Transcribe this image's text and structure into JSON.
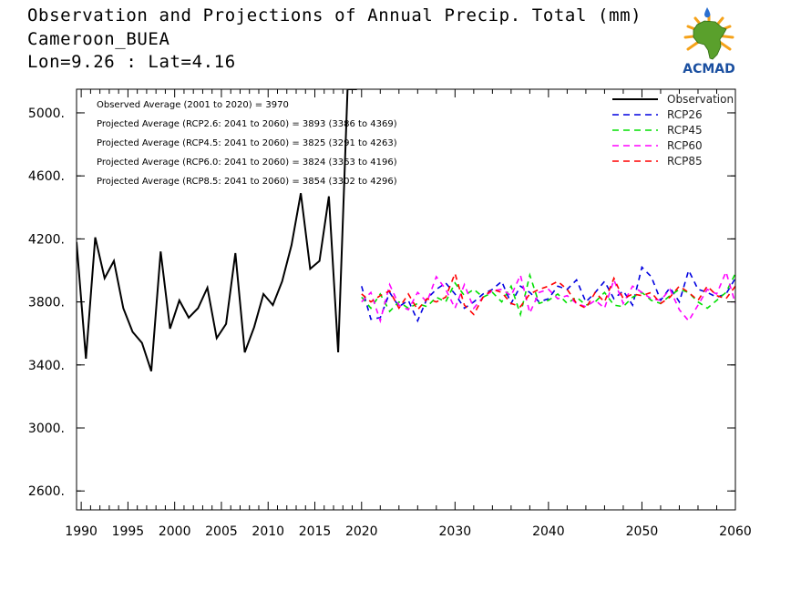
{
  "title": {
    "line1": "Observation and Projections of Annual Precip. Total (mm)",
    "line2": "Cameroon_BUEA",
    "line3": "Lon=9.26 : Lat=4.16"
  },
  "logo": {
    "text": "ACMAD",
    "colors": {
      "africa": "#5aa02c",
      "text": "#1a4fa0",
      "sun": "#f5a21a",
      "drop": "#2a6fd0"
    }
  },
  "chart_data": {
    "type": "line",
    "xlim": [
      1989.5,
      2060
    ],
    "ylim": [
      2480,
      5150
    ],
    "x_ticks": [
      {
        "v": 1990,
        "label": "1990"
      },
      {
        "v": 1995,
        "label": "1995"
      },
      {
        "v": 2000,
        "label": "2000"
      },
      {
        "v": 2005,
        "label": "2005"
      },
      {
        "v": 2010,
        "label": "2010"
      },
      {
        "v": 2015,
        "label": "2015"
      },
      {
        "v": 2020,
        "label": "2020"
      },
      {
        "v": 2030,
        "label": "2030"
      },
      {
        "v": 2040,
        "label": "2040"
      },
      {
        "v": 2050,
        "label": "2050"
      },
      {
        "v": 2060,
        "label": "2060"
      }
    ],
    "y_ticks": [
      {
        "v": 2600,
        "label": "2600."
      },
      {
        "v": 3000,
        "label": "3000."
      },
      {
        "v": 3400,
        "label": "3400."
      },
      {
        "v": 3800,
        "label": "3800."
      },
      {
        "v": 4200,
        "label": "4200."
      },
      {
        "v": 4600,
        "label": "4600."
      },
      {
        "v": 5000,
        "label": "5000."
      }
    ],
    "averages": [
      "Observed Average (2001 to 2020) = 3970",
      "Projected Average (RCP2.6: 2041 to 2060) = 3893 (3386 to 4369)",
      "Projected Average (RCP4.5: 2041 to 2060) = 3825 (3291 to 4263)",
      "Projected Average (RCP6.0: 2041 to 2060) = 3824 (3363 to 4196)",
      "Projected Average (RCP8.5: 2041 to 2060) = 3854 (3302 to 4296)"
    ],
    "legend_position": "top-right",
    "series": [
      {
        "name": "Observation",
        "color": "#000000",
        "dash": "solid",
        "x": [
          1989.5,
          1990.5,
          1991.5,
          1992.5,
          1993.5,
          1994.5,
          1995.5,
          1996.5,
          1997.5,
          1998.5,
          1999.5,
          2000.5,
          2001.5,
          2002.5,
          2003.5,
          2004.5,
          2005.5,
          2006.5,
          2007.5,
          2008.5,
          2009.5,
          2010.5,
          2011.5,
          2012.5,
          2013.5,
          2014.5,
          2015.5,
          2016.5,
          2017.5,
          2018.5,
          2019.5
        ],
        "y": [
          4180,
          3440,
          4210,
          3950,
          4060,
          3760,
          3610,
          3540,
          3360,
          4120,
          3630,
          3810,
          3700,
          3760,
          3890,
          3570,
          3660,
          4110,
          3480,
          3640,
          3850,
          3780,
          3930,
          4160,
          4490,
          4010,
          4060,
          4470,
          3480,
          5150,
          5150
        ]
      },
      {
        "name": "RCP26",
        "color": "#0000e0",
        "dash": "dashed",
        "x": [
          2020,
          2021,
          2022,
          2023,
          2024,
          2025,
          2026,
          2027,
          2028,
          2029,
          2030,
          2031,
          2032,
          2033,
          2034,
          2035,
          2036,
          2037,
          2038,
          2039,
          2040,
          2041,
          2042,
          2043,
          2044,
          2045,
          2046,
          2047,
          2048,
          2049,
          2050,
          2051,
          2052,
          2053,
          2054,
          2055,
          2056,
          2057,
          2058,
          2059,
          2060
        ],
        "y": [
          3900,
          3690,
          3700,
          3860,
          3770,
          3810,
          3680,
          3820,
          3880,
          3920,
          3850,
          3760,
          3800,
          3850,
          3880,
          3930,
          3790,
          3900,
          3860,
          3800,
          3820,
          3900,
          3880,
          3940,
          3800,
          3860,
          3930,
          3820,
          3870,
          3780,
          4020,
          3960,
          3810,
          3890,
          3800,
          4000,
          3880,
          3860,
          3830,
          3850,
          3950
        ]
      },
      {
        "name": "RCP45",
        "color": "#00e000",
        "dash": "dashed",
        "x": [
          2020,
          2021,
          2022,
          2023,
          2024,
          2025,
          2026,
          2027,
          2028,
          2029,
          2030,
          2031,
          2032,
          2033,
          2034,
          2035,
          2036,
          2037,
          2038,
          2039,
          2040,
          2041,
          2042,
          2043,
          2044,
          2045,
          2046,
          2047,
          2048,
          2049,
          2050,
          2051,
          2052,
          2053,
          2054,
          2055,
          2056,
          2057,
          2058,
          2059,
          2060
        ],
        "y": [
          3830,
          3760,
          3850,
          3740,
          3800,
          3760,
          3790,
          3770,
          3830,
          3800,
          3920,
          3840,
          3880,
          3830,
          3860,
          3800,
          3900,
          3720,
          3970,
          3790,
          3810,
          3850,
          3790,
          3830,
          3780,
          3800,
          3860,
          3780,
          3770,
          3830,
          3860,
          3810,
          3790,
          3840,
          3880,
          3860,
          3800,
          3760,
          3810,
          3860,
          3980
        ]
      },
      {
        "name": "RCP60",
        "color": "#ff00ff",
        "dash": "dashed",
        "x": [
          2020,
          2021,
          2022,
          2023,
          2024,
          2025,
          2026,
          2027,
          2028,
          2029,
          2030,
          2031,
          2032,
          2033,
          2034,
          2035,
          2036,
          2037,
          2038,
          2039,
          2040,
          2041,
          2042,
          2043,
          2044,
          2045,
          2046,
          2047,
          2048,
          2049,
          2050,
          2051,
          2052,
          2053,
          2054,
          2055,
          2056,
          2057,
          2058,
          2059,
          2060
        ],
        "y": [
          3800,
          3860,
          3680,
          3910,
          3780,
          3750,
          3860,
          3800,
          3960,
          3880,
          3760,
          3910,
          3760,
          3830,
          3870,
          3880,
          3840,
          3970,
          3730,
          3860,
          3880,
          3820,
          3840,
          3790,
          3770,
          3810,
          3760,
          3940,
          3790,
          3900,
          3860,
          3820,
          3810,
          3880,
          3750,
          3680,
          3780,
          3880,
          3850,
          3990,
          3790
        ]
      },
      {
        "name": "RCP85",
        "color": "#ff0000",
        "dash": "dashed",
        "x": [
          2020,
          2021,
          2022,
          2023,
          2024,
          2025,
          2026,
          2027,
          2028,
          2029,
          2030,
          2031,
          2032,
          2033,
          2034,
          2035,
          2036,
          2037,
          2038,
          2039,
          2040,
          2041,
          2042,
          2043,
          2044,
          2045,
          2046,
          2047,
          2048,
          2049,
          2050,
          2051,
          2052,
          2053,
          2054,
          2055,
          2056,
          2057,
          2058,
          2059,
          2060
        ],
        "y": [
          3850,
          3800,
          3840,
          3870,
          3760,
          3850,
          3750,
          3820,
          3800,
          3830,
          3980,
          3780,
          3720,
          3830,
          3880,
          3860,
          3790,
          3770,
          3850,
          3880,
          3900,
          3930,
          3880,
          3790,
          3760,
          3860,
          3800,
          3950,
          3820,
          3850,
          3840,
          3860,
          3790,
          3830,
          3900,
          3860,
          3810,
          3900,
          3840,
          3820,
          3900
        ]
      }
    ]
  }
}
